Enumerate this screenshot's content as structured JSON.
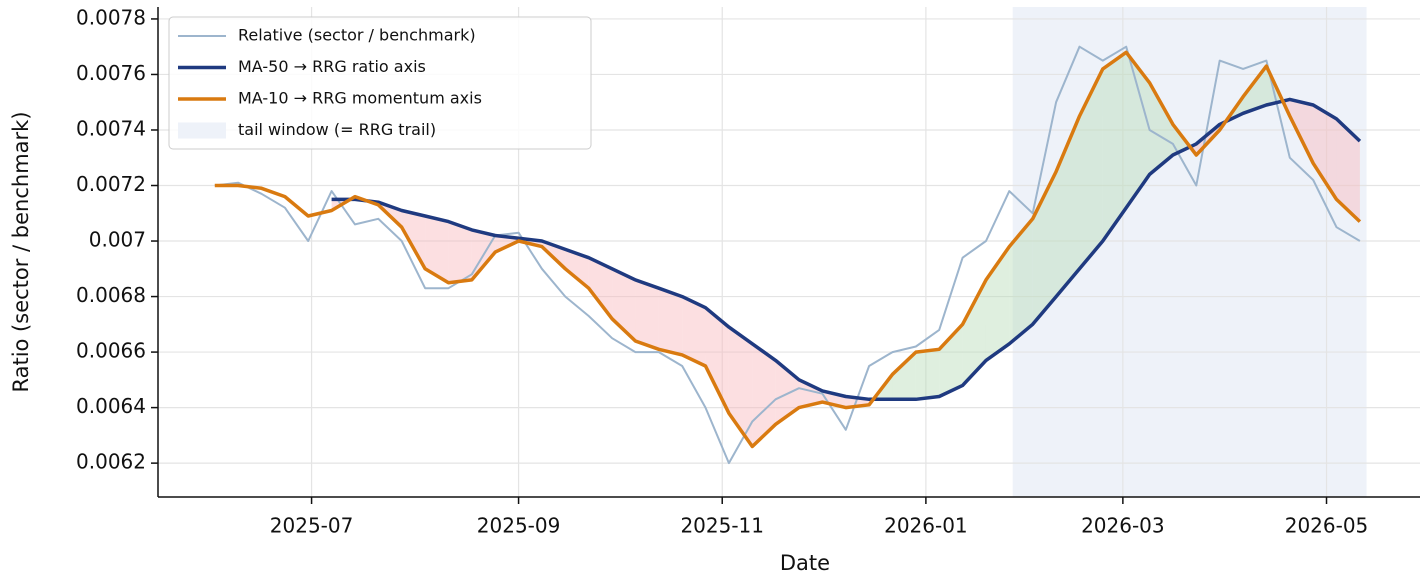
{
  "chart_data": {
    "type": "line",
    "x_label": "Date",
    "y_label": "Ratio (sector / benchmark)",
    "x": [
      "2025-06-02",
      "2025-06-09",
      "2025-06-16",
      "2025-06-23",
      "2025-06-30",
      "2025-07-07",
      "2025-07-14",
      "2025-07-21",
      "2025-07-28",
      "2025-08-04",
      "2025-08-11",
      "2025-08-18",
      "2025-08-25",
      "2025-09-01",
      "2025-09-08",
      "2025-09-15",
      "2025-09-22",
      "2025-09-29",
      "2025-10-06",
      "2025-10-13",
      "2025-10-20",
      "2025-10-27",
      "2025-11-03",
      "2025-11-10",
      "2025-11-17",
      "2025-11-24",
      "2025-12-01",
      "2025-12-08",
      "2025-12-15",
      "2025-12-22",
      "2025-12-29",
      "2026-01-05",
      "2026-01-12",
      "2026-01-19",
      "2026-01-26",
      "2026-02-02",
      "2026-02-09",
      "2026-02-16",
      "2026-02-23",
      "2026-03-02",
      "2026-03-09",
      "2026-03-16",
      "2026-03-23",
      "2026-03-30",
      "2026-04-06",
      "2026-04-13",
      "2026-04-20",
      "2026-04-27",
      "2026-05-04",
      "2026-05-11"
    ],
    "series": [
      {
        "name": "Relative (sector / benchmark)",
        "color": "#9db5cd",
        "width": 2,
        "values": [
          0.0072,
          0.00721,
          0.00717,
          0.00712,
          0.007,
          0.00718,
          0.00706,
          0.00708,
          0.007,
          0.00683,
          0.00683,
          0.00688,
          0.00702,
          0.00703,
          0.0069,
          0.0068,
          0.00673,
          0.00665,
          0.0066,
          0.0066,
          0.00655,
          0.0064,
          0.0062,
          0.00635,
          0.00643,
          0.00647,
          0.00645,
          0.00632,
          0.00655,
          0.0066,
          0.00662,
          0.00668,
          0.00694,
          0.007,
          0.00718,
          0.0071,
          0.0075,
          0.0077,
          0.00765,
          0.0077,
          0.0074,
          0.00735,
          0.0072,
          0.00765,
          0.00762,
          0.00765,
          0.0073,
          0.00722,
          0.00705,
          0.007
        ]
      },
      {
        "name": "MA-50  →  RRG ratio axis",
        "color": "#1f3a80",
        "width": 3.5,
        "values": [
          null,
          null,
          null,
          null,
          null,
          0.00715,
          0.00715,
          0.00714,
          0.00711,
          0.00709,
          0.00707,
          0.00704,
          0.00702,
          0.00701,
          0.007,
          0.00697,
          0.00694,
          0.0069,
          0.00686,
          0.00683,
          0.0068,
          0.00676,
          0.00669,
          0.00663,
          0.00657,
          0.0065,
          0.00646,
          0.00644,
          0.00643,
          0.00643,
          0.00643,
          0.00644,
          0.00648,
          0.00657,
          0.00663,
          0.0067,
          0.0068,
          0.0069,
          0.007,
          0.00712,
          0.00724,
          0.00731,
          0.00735,
          0.00742,
          0.00746,
          0.00749,
          0.00751,
          0.00749,
          0.00744,
          0.00736
        ]
      },
      {
        "name": "MA-10   →  RRG momentum axis",
        "color": "#d97a10",
        "width": 3.5,
        "values": [
          0.0072,
          0.0072,
          0.00719,
          0.00716,
          0.00709,
          0.00711,
          0.00716,
          0.00713,
          0.00705,
          0.0069,
          0.00685,
          0.00686,
          0.00696,
          0.007,
          0.00698,
          0.0069,
          0.00683,
          0.00672,
          0.00664,
          0.00661,
          0.00659,
          0.00655,
          0.00638,
          0.00626,
          0.00634,
          0.0064,
          0.00642,
          0.0064,
          0.00641,
          0.00652,
          0.0066,
          0.00661,
          0.0067,
          0.00686,
          0.00698,
          0.00708,
          0.00725,
          0.00745,
          0.00762,
          0.00768,
          0.00757,
          0.00742,
          0.00731,
          0.0074,
          0.00752,
          0.00763,
          0.00745,
          0.00728,
          0.00715,
          0.00707
        ]
      }
    ],
    "shade": {
      "label": "tail window (= RRG trail)",
      "start": "2026-01-27",
      "end": "2026-05-13",
      "color": "#eef2f9"
    },
    "fill_between": {
      "above_color": "#b9dcb9",
      "below_color": "#f8b8bd"
    },
    "xlim": [
      "2025-05-16",
      "2026-05-29"
    ],
    "xticks": [
      {
        "value": "2025-07-01",
        "label": "2025-07"
      },
      {
        "value": "2025-09-01",
        "label": "2025-09"
      },
      {
        "value": "2025-11-01",
        "label": "2025-11"
      },
      {
        "value": "2026-01-01",
        "label": "2026-01"
      },
      {
        "value": "2026-03-01",
        "label": "2026-03"
      },
      {
        "value": "2026-05-01",
        "label": "2026-05"
      }
    ],
    "ylim": [
      0.006078,
      0.007843
    ],
    "yticks": [
      0.0062,
      0.0064,
      0.0066,
      0.0068,
      0.007,
      0.0072,
      0.0074,
      0.0076,
      0.0078
    ],
    "grid": true,
    "legend": "upper left"
  }
}
